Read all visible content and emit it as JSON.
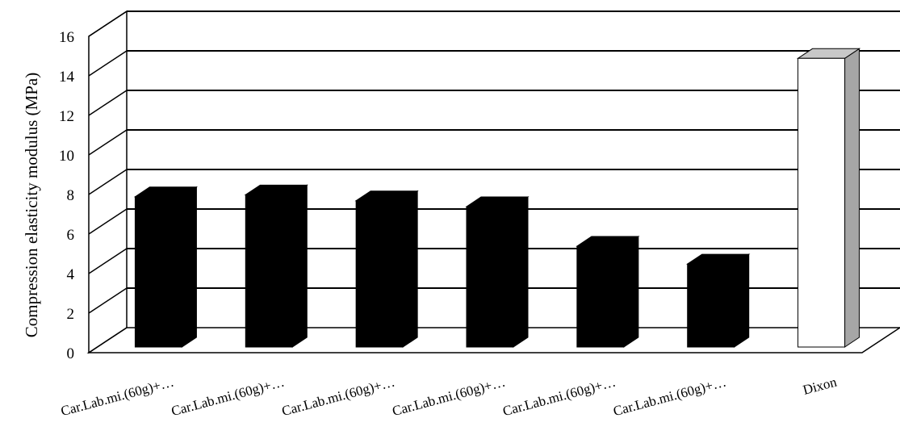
{
  "chart_data": {
    "type": "bar",
    "style": "3d-column",
    "title": "",
    "xlabel": "",
    "ylabel": "Compression elasticity modulus (MPa)",
    "ylim": [
      0,
      16
    ],
    "yticks": [
      0,
      2,
      4,
      6,
      8,
      10,
      12,
      14,
      16
    ],
    "grid": true,
    "legend": "none",
    "categories": [
      "Car.Lab.mi.(60g)+…",
      "Car.Lab.mi.(60g)+…",
      "Car.Lab.mi.(60g)+…",
      "Car.Lab.mi.(60g)+…",
      "Car.Lab.mi.(60g)+…",
      "Car.Lab.mi.(60g)+…",
      "Dixon"
    ],
    "values": [
      7.6,
      7.7,
      7.4,
      7.1,
      5.1,
      4.2,
      14.6
    ],
    "colors": {
      "front": [
        "#000000",
        "#000000",
        "#000000",
        "#000000",
        "#000000",
        "#000000",
        "#ffffff"
      ],
      "side": [
        "#000000",
        "#000000",
        "#000000",
        "#000000",
        "#000000",
        "#000000",
        "#a6a6a6"
      ],
      "top": [
        "#000000",
        "#000000",
        "#000000",
        "#000000",
        "#000000",
        "#000000",
        "#c8c8c8"
      ],
      "outline": "#000000",
      "grid": "#000000"
    }
  }
}
